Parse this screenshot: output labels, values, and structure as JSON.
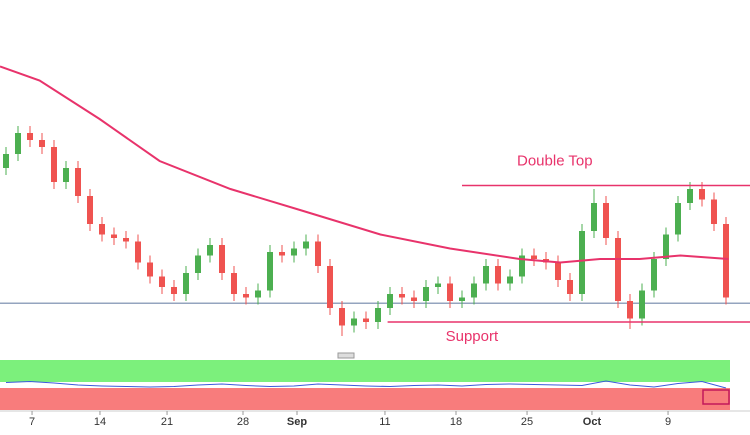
{
  "chart_data": {
    "type": "candlestick",
    "ylim": [
      0,
      100
    ],
    "xlim": [
      -0.5,
      61.5
    ],
    "up_color": "#4caf50",
    "down_color": "#ef5350",
    "open": [
      52,
      56,
      62,
      60,
      58,
      48,
      52,
      44,
      36,
      33,
      32,
      31,
      25,
      21,
      18,
      16,
      22,
      27,
      30,
      22,
      16,
      15,
      17,
      28,
      27,
      29,
      31,
      24,
      12,
      7,
      9,
      8,
      12,
      16,
      15,
      14,
      18,
      19,
      14,
      15,
      19,
      24,
      19,
      21,
      27,
      26,
      25,
      20,
      16,
      34,
      42,
      32,
      14,
      9,
      17,
      26,
      33,
      42,
      46,
      43,
      36
    ],
    "high": [
      58,
      64,
      64,
      62,
      60,
      54,
      54,
      46,
      38,
      35,
      34,
      33,
      27,
      23,
      20,
      24,
      29,
      32,
      32,
      24,
      18,
      19,
      30,
      30,
      31,
      33,
      33,
      26,
      14,
      11,
      11,
      14,
      18,
      18,
      17,
      20,
      21,
      21,
      17,
      21,
      26,
      26,
      23,
      29,
      29,
      28,
      27,
      22,
      36,
      46,
      44,
      34,
      16,
      19,
      28,
      35,
      44,
      48,
      48,
      45,
      38
    ],
    "low": [
      50,
      54,
      58,
      56,
      46,
      46,
      42,
      34,
      31,
      30,
      29,
      23,
      19,
      16,
      14,
      14,
      20,
      25,
      20,
      14,
      13,
      13,
      15,
      25,
      25,
      27,
      22,
      10,
      4,
      5,
      6,
      6,
      10,
      13,
      12,
      12,
      16,
      12,
      12,
      13,
      17,
      17,
      17,
      19,
      24,
      23,
      18,
      14,
      14,
      32,
      30,
      12,
      6,
      7,
      15,
      24,
      31,
      40,
      41,
      34,
      13
    ],
    "close": [
      56,
      62,
      60,
      58,
      48,
      52,
      44,
      36,
      33,
      32,
      31,
      25,
      21,
      18,
      16,
      22,
      27,
      30,
      22,
      16,
      15,
      17,
      28,
      27,
      29,
      31,
      24,
      12,
      7,
      9,
      8,
      12,
      16,
      15,
      14,
      18,
      19,
      14,
      15,
      19,
      24,
      19,
      21,
      27,
      26,
      25,
      20,
      16,
      34,
      42,
      32,
      14,
      9,
      17,
      26,
      33,
      42,
      46,
      43,
      36,
      15
    ],
    "moving_average": {
      "color": "#e8336b",
      "x": [
        -0.5,
        2.8,
        7.8,
        12.8,
        18.7,
        24.5,
        31.2,
        37,
        42.8,
        46.2,
        49.5,
        52.8,
        56.2,
        60.2
      ],
      "values": [
        81,
        77,
        66,
        54,
        46,
        40,
        33,
        29,
        26,
        25,
        26,
        26,
        27,
        26
      ]
    },
    "levels": [
      {
        "label": "Double Top",
        "value": 47,
        "start": 38,
        "color": "#e8336b"
      },
      {
        "label": "Support",
        "value": 8,
        "start": 31.8,
        "color": "#e8336b"
      }
    ],
    "current_price": {
      "value": 13.4,
      "color": "#2a4a7f"
    },
    "xticks": [
      {
        "value": 2.17,
        "label": "7"
      },
      {
        "value": 7.83,
        "label": "14"
      },
      {
        "value": 13.42,
        "label": "21"
      },
      {
        "value": 19.75,
        "label": "28"
      },
      {
        "value": 24.25,
        "label": "Sep"
      },
      {
        "value": 31.58,
        "label": "11"
      },
      {
        "value": 37.5,
        "label": "18"
      },
      {
        "value": 43.42,
        "label": "25"
      },
      {
        "value": 48.83,
        "label": "Oct"
      },
      {
        "value": 55.17,
        "label": "9"
      }
    ],
    "rsi": {
      "color": "#3b5bdb",
      "ylim": [
        0,
        100
      ],
      "upper_zone": [
        56,
        100
      ],
      "upper_color": "#7cf07c",
      "lower_zone": [
        0,
        44
      ],
      "lower_color": "#f87c7c",
      "x": [
        0,
        2,
        4,
        6,
        8,
        10,
        12,
        14,
        16,
        18,
        20,
        22,
        24,
        26,
        28,
        30,
        32,
        34,
        36,
        38,
        40,
        42,
        44,
        46,
        48,
        50,
        52,
        54,
        56,
        58,
        60
      ],
      "values": [
        55,
        57,
        54,
        50,
        48,
        47,
        46,
        47,
        50,
        52,
        49,
        47,
        48,
        52,
        50,
        48,
        47,
        49,
        50,
        48,
        51,
        52,
        51,
        50,
        49,
        58,
        50,
        46,
        53,
        57,
        44
      ]
    }
  }
}
